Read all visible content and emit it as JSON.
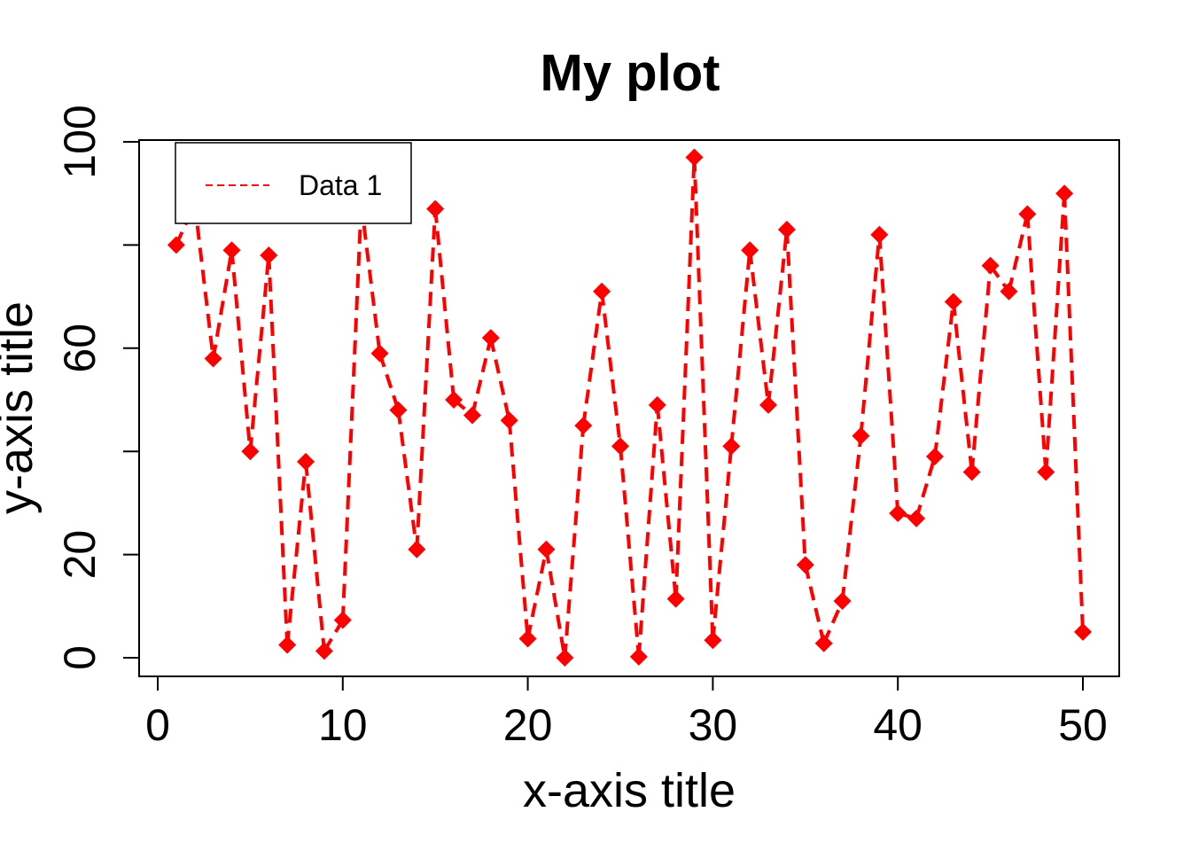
{
  "chart_data": {
    "type": "line",
    "title": "My plot",
    "xlabel": "x-axis title",
    "ylabel": "y-axis title",
    "xlim": [
      0,
      50
    ],
    "ylim": [
      0,
      100
    ],
    "x_ticks": [
      "0",
      "10",
      "20",
      "30",
      "40",
      "50"
    ],
    "y_ticks": [
      "0",
      "20",
      "60",
      "100"
    ],
    "y_tick_marks": [
      0,
      20,
      40,
      60,
      80,
      100
    ],
    "grid": false,
    "legend": {
      "position": "top-left",
      "label": "Data 1"
    },
    "series_color": "#ff0000",
    "marker": "diamond",
    "line_style": "dashed",
    "series": [
      {
        "name": "Data 1",
        "x": [
          1,
          2,
          3,
          4,
          5,
          6,
          7,
          8,
          9,
          10,
          11,
          12,
          13,
          14,
          15,
          16,
          17,
          18,
          19,
          20,
          21,
          22,
          23,
          24,
          25,
          26,
          27,
          28,
          29,
          30,
          31,
          32,
          33,
          34,
          35,
          36,
          37,
          38,
          39,
          40,
          41,
          42,
          43,
          44,
          45,
          46,
          47,
          48,
          49,
          50
        ],
        "values": [
          80,
          88,
          58,
          79,
          40,
          78,
          2.5,
          38,
          1.3,
          7.3,
          88,
          59,
          48,
          21,
          87,
          50,
          47,
          62,
          46,
          3.7,
          21,
          0,
          45,
          71,
          41,
          0.2,
          49,
          11.4,
          97,
          3.4,
          41,
          79,
          49,
          83,
          18,
          2.8,
          11,
          43,
          82,
          28,
          27,
          39,
          69,
          36,
          76,
          71,
          86,
          36,
          90,
          5
        ]
      }
    ]
  }
}
